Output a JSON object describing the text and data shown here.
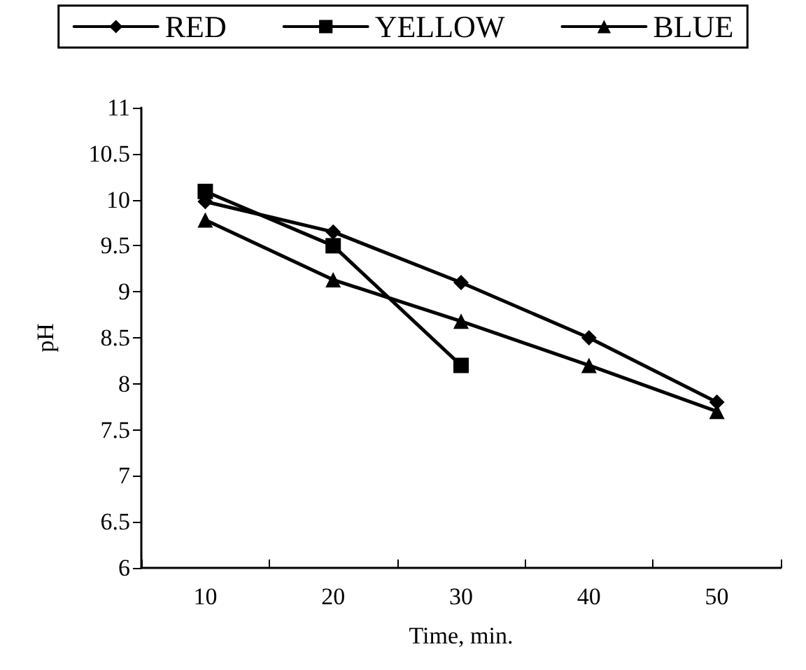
{
  "chart_data": {
    "type": "line",
    "xlabel": "Time, min.",
    "ylabel": "pH",
    "categories": [
      "10",
      "20",
      "30",
      "40",
      "50"
    ],
    "series": [
      {
        "name": "RED",
        "color": "#000000",
        "marker": "diamond",
        "values": [
          9.98,
          9.65,
          9.1,
          8.5,
          7.8
        ]
      },
      {
        "name": "YELLOW",
        "color": "#000000",
        "marker": "square",
        "values": [
          10.09,
          9.5,
          8.2,
          null,
          null
        ]
      },
      {
        "name": "BLUE",
        "color": "#000000",
        "marker": "triangle",
        "values": [
          9.78,
          9.13,
          8.68,
          8.2,
          7.7
        ]
      }
    ],
    "ylim": [
      6,
      11
    ],
    "yticks": [
      6,
      6.5,
      7,
      7.5,
      8,
      8.5,
      9,
      9.5,
      10,
      10.5,
      11
    ],
    "grid": false,
    "legend": "top",
    "line_style": "solid"
  }
}
